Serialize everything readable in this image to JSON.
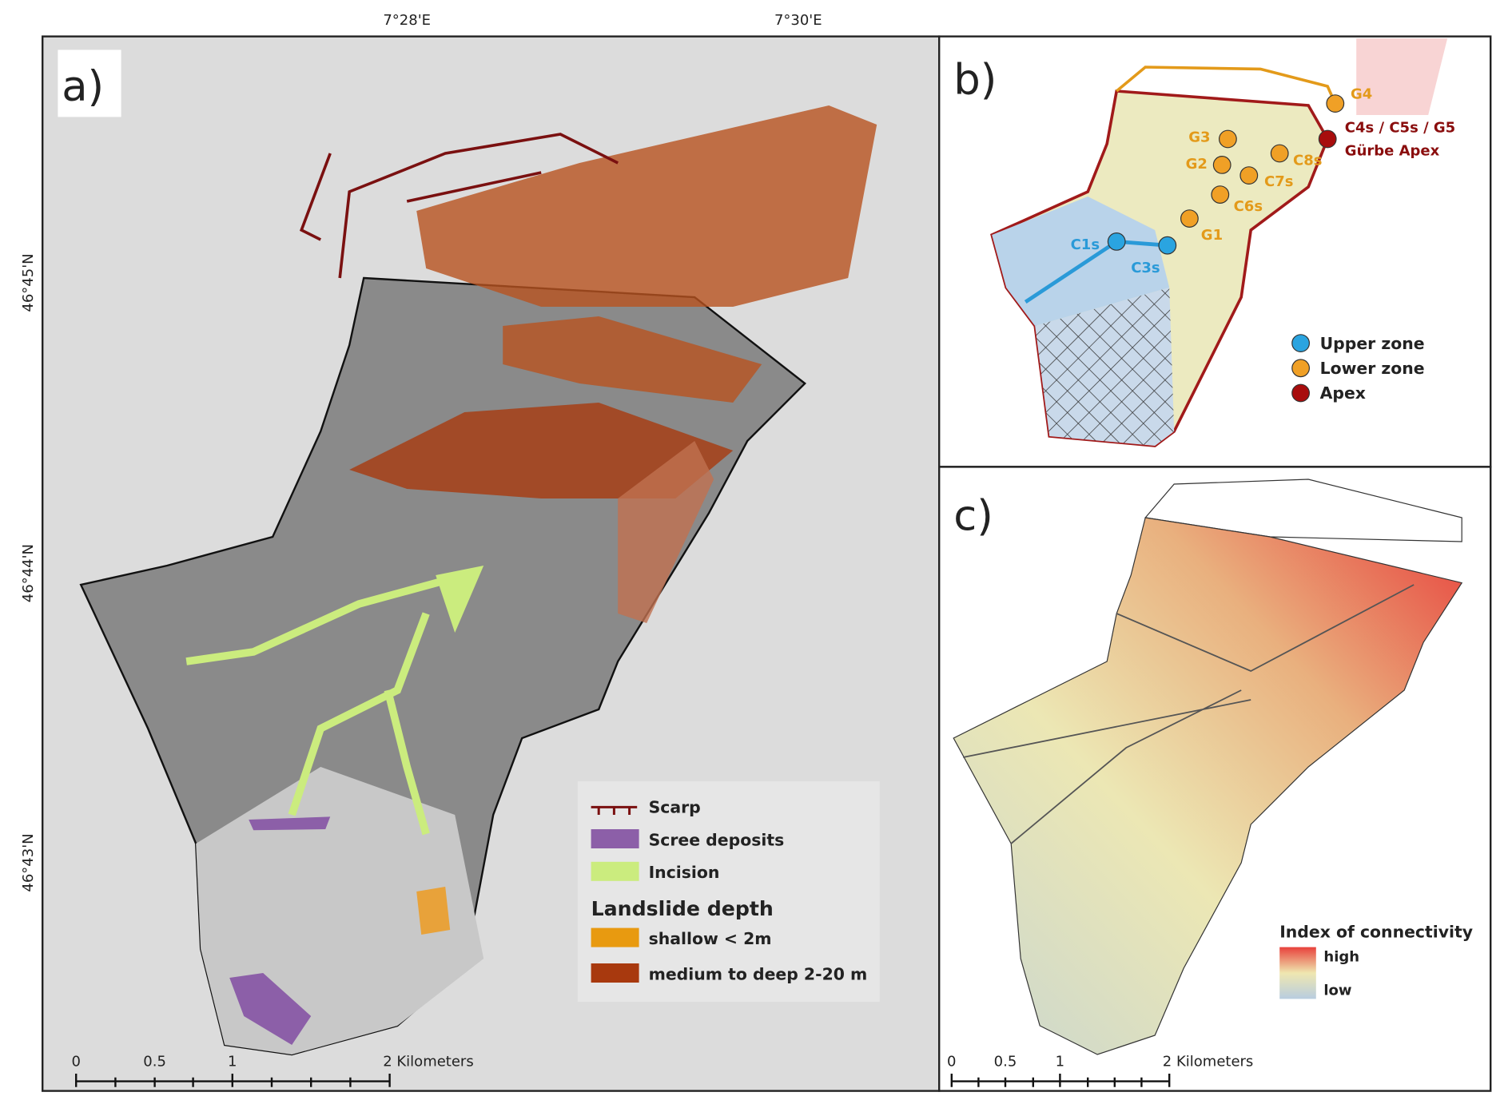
{
  "panel_a": {
    "label": "a)",
    "lon_labels": [
      "7°28'E",
      "7°30'E"
    ],
    "lat_labels": [
      "46°45'N",
      "46°44'N",
      "46°43'N"
    ],
    "legend": [
      "Scarp",
      "Scree deposits",
      "Incision"
    ],
    "depth_title": "Landslide depth",
    "depth_items": [
      "shallow < 2m",
      "medium to deep 2-20 m"
    ],
    "scale": [
      "0",
      "0.5",
      "1",
      "2 Kilometers"
    ]
  },
  "panel_b": {
    "label": "b)",
    "stations": [
      "G4",
      "C4s / C5s / G5",
      "Gürbe Apex",
      "G3",
      "C8s",
      "G2",
      "C7s",
      "C6s",
      "G1",
      "C1s",
      "C3s"
    ],
    "legend": [
      "Upper zone",
      "Lower zone",
      "Apex"
    ]
  },
  "panel_c": {
    "label": "c)",
    "legend_title": "Index of connectivity",
    "high": "high",
    "low": "low",
    "scale": [
      "0",
      "0.5",
      "1",
      "2 Kilometers"
    ]
  }
}
